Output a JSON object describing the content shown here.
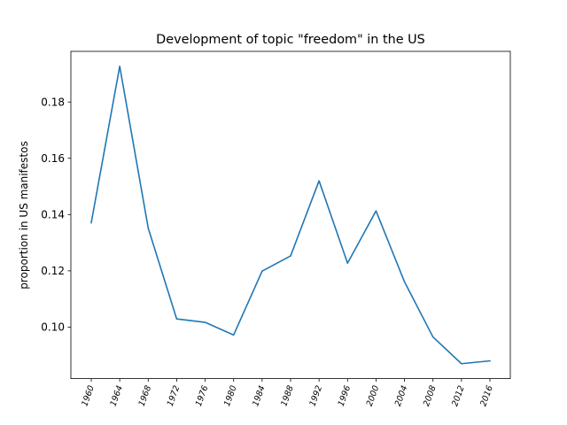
{
  "chart_data": {
    "type": "line",
    "title": "Development of topic \"freedom\" in the US",
    "xlabel": "",
    "ylabel": "proportion in US manifestos",
    "x": [
      "1960",
      "1964",
      "1968",
      "1972",
      "1976",
      "1980",
      "1984",
      "1988",
      "1992",
      "1996",
      "2000",
      "2004",
      "2008",
      "2012",
      "2016"
    ],
    "series": [
      {
        "values": [
          0.1371,
          0.1927,
          0.1352,
          0.1029,
          0.1017,
          0.0972,
          0.1199,
          0.1253,
          0.152,
          0.1227,
          0.1413,
          0.1161,
          0.0965,
          0.087,
          0.088
        ],
        "color": "#1f77b4"
      }
    ],
    "yticks": [
      "0.10",
      "0.12",
      "0.14",
      "0.16",
      "0.18"
    ],
    "ylim": [
      0.0817,
      0.198
    ],
    "grid": false,
    "legend": "none"
  }
}
